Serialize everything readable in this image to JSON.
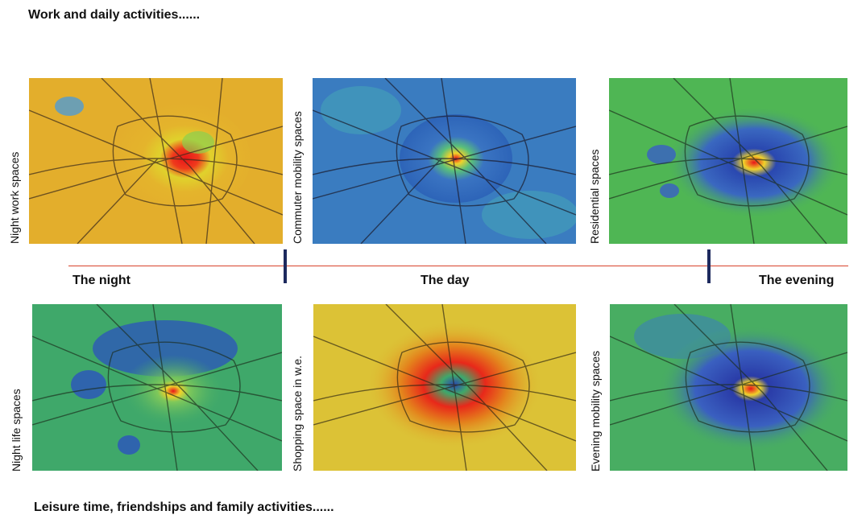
{
  "headings": {
    "top": "Work and daily activities......",
    "bottom": "Leisure time, friendships and family activities......"
  },
  "timeline": {
    "labels": [
      "The night",
      "The day",
      "The evening"
    ]
  },
  "maps": [
    {
      "label": "Night work spaces",
      "base": "#e3ae2c",
      "hot": "red-core"
    },
    {
      "label": "Commuter mobility spaces",
      "base": "#2d64b8",
      "hot": "small-core"
    },
    {
      "label": "Residential spaces",
      "base": "#4fb654",
      "hot": "blue-ring"
    },
    {
      "label": "Night life spaces",
      "base": "#3fa86a",
      "hot": "blue-ring"
    },
    {
      "label": "Shopping space in w.e.",
      "base": "#dcc236",
      "hot": "red-ring"
    },
    {
      "label": "Evening mobility spaces",
      "base": "#48ad62",
      "hot": "blue-ring"
    }
  ]
}
